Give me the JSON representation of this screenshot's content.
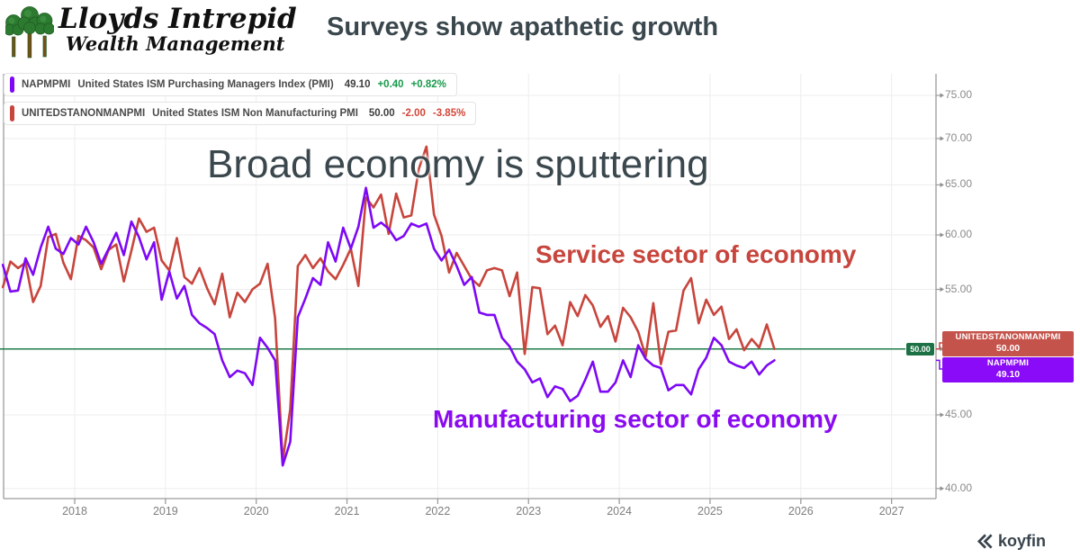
{
  "header": {
    "logo_line1": "Lloyds Intrepid",
    "logo_line2": "Wealth Management",
    "title": "Surveys show apathetic growth"
  },
  "legend": [
    {
      "ticker": "NAPMPMI",
      "name": "United States ISM Purchasing Managers Index (PMI)",
      "value": "49.10",
      "change": "+0.40",
      "change_pct": "+0.82%"
    },
    {
      "ticker": "UNITEDSTANONMANPMI",
      "name": "United States ISM Non Manufacturing PMI",
      "value": "50.00",
      "change": "-2.00",
      "change_pct": "-3.85%"
    }
  ],
  "annotations": {
    "big": "Broad economy is sputtering",
    "service": "Service sector of economy",
    "manufacturing": "Manufacturing sector of economy"
  },
  "price_labels": [
    {
      "ticker": "UNITEDSTANONMANPMI",
      "value": "50.00"
    },
    {
      "ticker": "NAPMPMI",
      "value": "49.10"
    }
  ],
  "watermark": {
    "text": "koyfin"
  },
  "ui_colors": {
    "title_text": "#3A474D",
    "annotation_red": "#C7453C",
    "annotation_purple": "#8A0BF0",
    "axis_text": "#8B8B8B",
    "grid": "#EDEDED",
    "spine": "#9C9C9C",
    "positive_change": "#189A4A",
    "negative_change": "#D34639"
  },
  "chart_data": {
    "type": "line",
    "title": "Surveys show apathetic growth",
    "x_axis": {
      "range": [
        2017.17,
        2027.49
      ],
      "ticks": [
        {
          "v": 2018,
          "label": "2018"
        },
        {
          "v": 2019,
          "label": "2019"
        },
        {
          "v": 2020,
          "label": "2020"
        },
        {
          "v": 2021,
          "label": "2021"
        },
        {
          "v": 2022,
          "label": "2022"
        },
        {
          "v": 2023,
          "label": "2023"
        },
        {
          "v": 2024,
          "label": "2024"
        },
        {
          "v": 2025,
          "label": "2025"
        },
        {
          "v": 2026,
          "label": "2026"
        },
        {
          "v": 2027,
          "label": "2027"
        }
      ]
    },
    "y_axis": {
      "scale": "log",
      "range": [
        39.5,
        76.5
      ],
      "side": "right",
      "ticks": [
        {
          "v": 75,
          "label": "75.00"
        },
        {
          "v": 70,
          "label": "70.00"
        },
        {
          "v": 65,
          "label": "65.00"
        },
        {
          "v": 60,
          "label": "60.00"
        },
        {
          "v": 55,
          "label": "55.00"
        },
        {
          "v": 50,
          "label": "50.00"
        },
        {
          "v": 45,
          "label": "45.00"
        },
        {
          "v": 40,
          "label": "40.00"
        }
      ]
    },
    "grid": true,
    "legend_position": "top-left",
    "reference_line": {
      "value": 50,
      "label": "50.00",
      "color": "#1F7C4A",
      "label_bg": "#1C7245"
    },
    "series": [
      {
        "name": "NAPMPMI",
        "color": "#7D08F5",
        "label_bg": "#8A0BF7",
        "freq": "monthly",
        "start_year": 2017,
        "start_month": 3,
        "last_value": 49.1,
        "values": [
          57.2,
          54.8,
          54.9,
          57.8,
          56.3,
          58.8,
          60.8,
          58.7,
          58.2,
          59.7,
          59.1,
          60.8,
          59.3,
          57.3,
          58.7,
          60.2,
          58.1,
          61.3,
          59.8,
          57.7,
          59.3,
          54.1,
          56.6,
          54.2,
          55.3,
          52.8,
          52.1,
          51.7,
          51.2,
          49.1,
          47.8,
          48.3,
          48.1,
          47.2,
          50.9,
          50.1,
          49.1,
          41.5,
          43.1,
          52.6,
          54.2,
          56.0,
          55.4,
          59.3,
          57.5,
          60.7,
          58.7,
          60.8,
          64.7,
          60.7,
          61.2,
          60.6,
          59.5,
          59.9,
          61.1,
          60.8,
          61.1,
          58.7,
          57.6,
          58.6,
          57.1,
          55.4,
          56.1,
          53.0,
          52.8,
          52.8,
          50.9,
          50.2,
          49.0,
          48.4,
          47.4,
          47.7,
          46.3,
          47.1,
          46.9,
          46.0,
          46.4,
          47.6,
          49.0,
          46.7,
          46.7,
          47.4,
          49.1,
          47.8,
          50.3,
          49.2,
          48.7,
          48.5,
          46.8,
          47.2,
          47.2,
          46.5,
          48.4,
          49.3,
          50.9,
          50.3,
          49.0,
          48.7,
          48.5,
          49.0,
          48.0,
          48.7,
          49.1
        ]
      },
      {
        "name": "UNITEDSTANONMANPMI",
        "color": "#C7453C",
        "label_bg": "#C4534B",
        "freq": "monthly",
        "start_year": 2017,
        "start_month": 3,
        "last_value": 50.0,
        "values": [
          55.2,
          57.5,
          56.9,
          57.4,
          53.9,
          55.3,
          59.8,
          60.1,
          57.4,
          55.9,
          59.9,
          59.5,
          58.8,
          56.8,
          58.6,
          59.1,
          55.7,
          58.5,
          61.6,
          60.3,
          60.7,
          57.6,
          56.7,
          59.7,
          56.1,
          55.5,
          56.9,
          55.1,
          53.7,
          56.4,
          52.6,
          54.7,
          53.9,
          55.0,
          55.5,
          57.3,
          52.5,
          41.8,
          45.4,
          57.1,
          58.1,
          56.9,
          57.8,
          56.6,
          55.9,
          57.2,
          58.7,
          55.3,
          63.7,
          62.7,
          64.0,
          60.1,
          64.1,
          61.7,
          61.9,
          66.7,
          69.1,
          62.0,
          59.9,
          56.5,
          58.3,
          57.1,
          55.9,
          55.3,
          56.7,
          56.9,
          56.7,
          54.4,
          56.5,
          49.6,
          55.2,
          55.1,
          51.2,
          51.9,
          50.3,
          53.9,
          52.7,
          54.5,
          53.6,
          51.8,
          52.7,
          50.6,
          53.4,
          52.6,
          51.4,
          49.4,
          53.8,
          48.8,
          51.4,
          51.5,
          54.9,
          56.0,
          52.1,
          54.1,
          52.8,
          53.5,
          50.8,
          51.6,
          49.9,
          50.8,
          50.1,
          52.0,
          50.0
        ]
      }
    ]
  }
}
